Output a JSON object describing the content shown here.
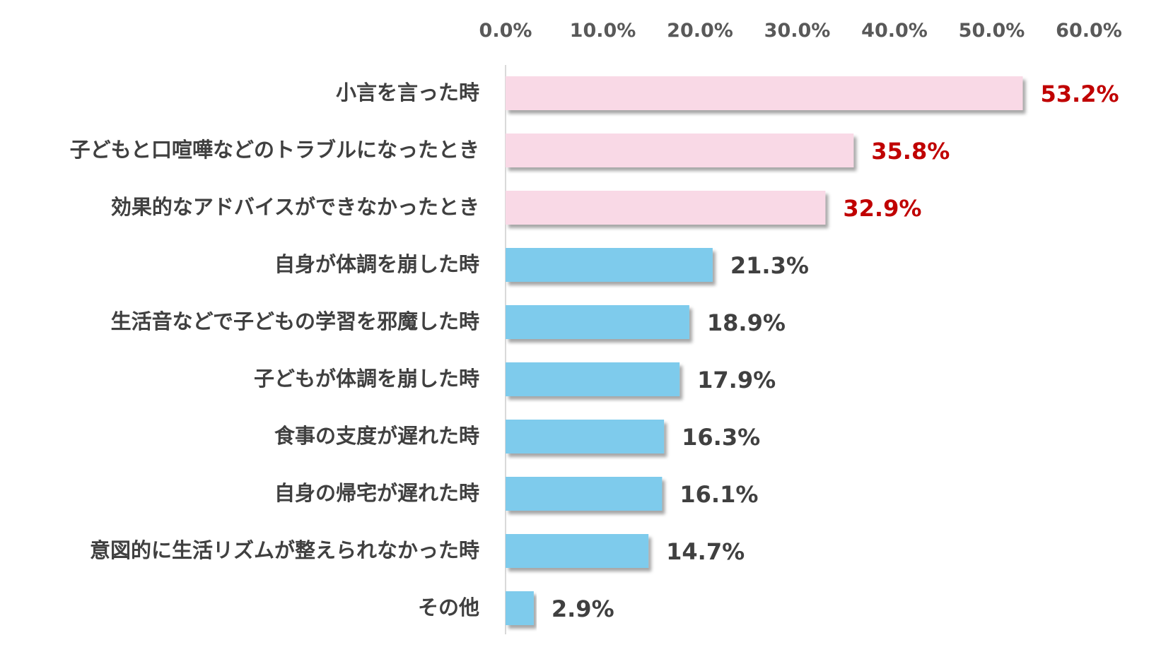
{
  "chart_data": {
    "type": "bar",
    "orientation": "horizontal",
    "title": "",
    "xlabel": "",
    "ylabel": "",
    "xlim": [
      0,
      60
    ],
    "ticks": [
      "0.0%",
      "10.0%",
      "20.0%",
      "30.0%",
      "40.0%",
      "50.0%",
      "60.0%"
    ],
    "grid": false,
    "legend": "none",
    "highlight_color": "#f9d9e6",
    "base_color": "#7ecbec",
    "highlight_label_color": "#c00000",
    "base_label_color": "#404040",
    "bars": [
      {
        "category": "小言を言った時",
        "value": 53.2,
        "label": "53.2%",
        "highlight": true
      },
      {
        "category": "子どもと口喧嘩などのトラブルになったとき",
        "value": 35.8,
        "label": "35.8%",
        "highlight": true
      },
      {
        "category": "効果的なアドバイスができなかったとき",
        "value": 32.9,
        "label": "32.9%",
        "highlight": true
      },
      {
        "category": "自身が体調を崩した時",
        "value": 21.3,
        "label": "21.3%",
        "highlight": false
      },
      {
        "category": "生活音などで子どもの学習を邪魔した時",
        "value": 18.9,
        "label": "18.9%",
        "highlight": false
      },
      {
        "category": "子どもが体調を崩した時",
        "value": 17.9,
        "label": "17.9%",
        "highlight": false
      },
      {
        "category": "食事の支度が遅れた時",
        "value": 16.3,
        "label": "16.3%",
        "highlight": false
      },
      {
        "category": "自身の帰宅が遅れた時",
        "value": 16.1,
        "label": "16.1%",
        "highlight": false
      },
      {
        "category": "意図的に生活リズムが整えられなかった時",
        "value": 14.7,
        "label": "14.7%",
        "highlight": false
      },
      {
        "category": "その他",
        "value": 2.9,
        "label": "2.9%",
        "highlight": false
      }
    ]
  }
}
